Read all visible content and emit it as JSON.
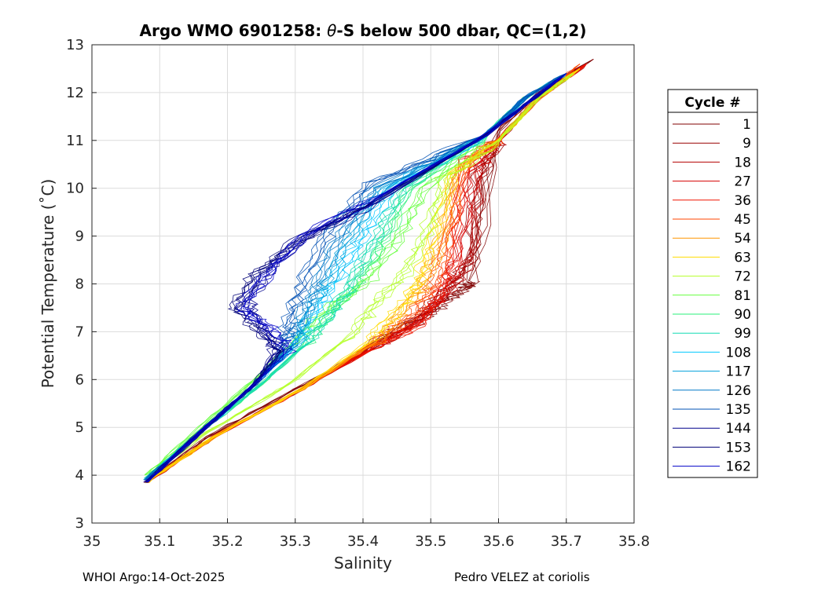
{
  "chart_data": {
    "type": "line",
    "title": "Argo WMO 6901258: θ-S below 500 dbar,  QC=(1,2)",
    "title_parts": {
      "pre": "Argo WMO 6901258: ",
      "theta": "θ",
      "post": "-S below 500 dbar,  QC=(1,2)"
    },
    "xlabel": "Salinity",
    "ylabel": "Potential Temperature (˚C)",
    "xlim": [
      35,
      35.8
    ],
    "ylim": [
      3,
      13
    ],
    "xticks": [
      "35",
      "35.1",
      "35.2",
      "35.3",
      "35.4",
      "35.5",
      "35.6",
      "35.7",
      "35.8"
    ],
    "yticks": [
      "3",
      "4",
      "5",
      "6",
      "7",
      "8",
      "9",
      "10",
      "11",
      "12",
      "13"
    ],
    "grid": true,
    "legend_title": "Cycle #",
    "legend_position": "right",
    "colormap": "jet",
    "series": [
      {
        "name": "1",
        "color": "#800000",
        "salinity": [
          35.08,
          35.17,
          35.3,
          35.42,
          35.48,
          35.52,
          35.55,
          35.56,
          35.6,
          35.66,
          35.74
        ],
        "theta": [
          3.85,
          4.8,
          5.8,
          6.7,
          7.2,
          7.6,
          7.9,
          8.05,
          11.2,
          12.0,
          12.7
        ]
      },
      {
        "name": "9",
        "color": "#990000",
        "salinity": [
          35.08,
          35.18,
          35.31,
          35.42,
          35.49,
          35.53,
          35.56,
          35.57,
          35.6,
          35.66,
          35.73
        ],
        "theta": [
          3.85,
          4.8,
          5.8,
          6.8,
          7.4,
          8.0,
          8.5,
          10.2,
          11.0,
          11.9,
          12.6
        ]
      },
      {
        "name": "18",
        "color": "#b30000",
        "salinity": [
          35.08,
          35.18,
          35.31,
          35.42,
          35.49,
          35.53,
          35.56,
          35.57,
          35.6,
          35.66,
          35.73
        ],
        "theta": [
          3.85,
          4.8,
          5.8,
          6.7,
          7.3,
          7.9,
          8.6,
          10.4,
          11.0,
          11.9,
          12.6
        ]
      },
      {
        "name": "27",
        "color": "#d60000",
        "salinity": [
          35.08,
          35.18,
          35.31,
          35.42,
          35.48,
          35.52,
          35.54,
          35.56,
          35.6,
          35.66,
          35.73
        ],
        "theta": [
          3.85,
          4.8,
          5.8,
          6.7,
          7.2,
          7.8,
          8.5,
          10.3,
          11.0,
          11.9,
          12.6
        ]
      },
      {
        "name": "36",
        "color": "#f01400",
        "salinity": [
          35.08,
          35.18,
          35.31,
          35.42,
          35.48,
          35.51,
          35.53,
          35.55,
          35.6,
          35.66,
          35.73
        ],
        "theta": [
          3.85,
          4.8,
          5.8,
          6.7,
          7.1,
          7.7,
          8.4,
          10.6,
          11.0,
          11.9,
          12.6
        ]
      },
      {
        "name": "45",
        "color": "#ff4600",
        "salinity": [
          35.08,
          35.18,
          35.31,
          35.42,
          35.47,
          35.5,
          35.52,
          35.55,
          35.6,
          35.66,
          35.72
        ],
        "theta": [
          3.85,
          4.8,
          5.8,
          6.8,
          7.3,
          7.9,
          8.6,
          10.5,
          11.0,
          11.9,
          12.6
        ]
      },
      {
        "name": "54",
        "color": "#ff9600",
        "salinity": [
          35.08,
          35.18,
          35.31,
          35.42,
          35.46,
          35.49,
          35.51,
          35.54,
          35.6,
          35.66,
          35.72
        ],
        "theta": [
          3.85,
          4.8,
          5.8,
          6.8,
          7.4,
          8.0,
          8.7,
          10.4,
          11.0,
          11.9,
          12.5
        ]
      },
      {
        "name": "63",
        "color": "#ffdc00",
        "salinity": [
          35.08,
          35.18,
          35.31,
          35.41,
          35.45,
          35.48,
          35.5,
          35.53,
          35.6,
          35.66,
          35.72
        ],
        "theta": [
          3.85,
          4.8,
          5.8,
          6.8,
          7.4,
          8.0,
          8.8,
          10.3,
          11.0,
          11.9,
          12.5
        ]
      },
      {
        "name": "72",
        "color": "#b4ff28",
        "salinity": [
          35.08,
          35.17,
          35.29,
          35.38,
          35.42,
          35.46,
          35.49,
          35.52,
          35.6,
          35.66,
          35.71
        ],
        "theta": [
          3.95,
          4.9,
          5.9,
          6.9,
          7.6,
          8.2,
          8.9,
          10.2,
          11.0,
          11.9,
          12.4
        ]
      },
      {
        "name": "81",
        "color": "#64ff3c",
        "salinity": [
          35.08,
          35.16,
          35.24,
          35.3,
          35.35,
          35.41,
          35.45,
          35.49,
          35.58,
          35.64,
          35.7
        ],
        "theta": [
          4.0,
          5.0,
          6.0,
          6.8,
          7.5,
          8.1,
          8.9,
          10.0,
          11.1,
          11.9,
          12.4
        ]
      },
      {
        "name": "90",
        "color": "#28f078",
        "salinity": [
          35.08,
          35.16,
          35.25,
          35.32,
          35.36,
          35.4,
          35.43,
          35.47,
          35.58,
          35.64,
          35.7
        ],
        "theta": [
          3.95,
          4.9,
          5.9,
          6.8,
          7.5,
          8.2,
          8.9,
          10.0,
          11.1,
          11.9,
          12.4
        ]
      },
      {
        "name": "99",
        "color": "#14dcb4",
        "salinity": [
          35.08,
          35.16,
          35.25,
          35.32,
          35.36,
          35.39,
          35.42,
          35.46,
          35.58,
          35.64,
          35.7
        ],
        "theta": [
          3.95,
          4.9,
          5.9,
          6.8,
          7.5,
          8.2,
          9.0,
          10.0,
          11.1,
          11.9,
          12.4
        ]
      },
      {
        "name": "108",
        "color": "#00c8ff",
        "salinity": [
          35.08,
          35.16,
          35.24,
          35.3,
          35.33,
          35.36,
          35.4,
          35.44,
          35.58,
          35.64,
          35.7
        ],
        "theta": [
          3.9,
          4.9,
          5.9,
          6.7,
          7.4,
          8.1,
          9.0,
          10.0,
          11.1,
          11.9,
          12.4
        ]
      },
      {
        "name": "117",
        "color": "#00a0dc",
        "salinity": [
          35.08,
          35.16,
          35.24,
          35.3,
          35.32,
          35.35,
          35.38,
          35.43,
          35.58,
          35.64,
          35.7
        ],
        "theta": [
          3.9,
          4.9,
          5.9,
          6.7,
          7.4,
          8.1,
          9.0,
          10.0,
          11.1,
          11.9,
          12.4
        ]
      },
      {
        "name": "126",
        "color": "#0078c8",
        "salinity": [
          35.08,
          35.16,
          35.24,
          35.29,
          35.31,
          35.33,
          35.37,
          35.42,
          35.58,
          35.64,
          35.7
        ],
        "theta": [
          3.9,
          4.9,
          5.9,
          6.7,
          7.3,
          8.0,
          9.1,
          10.0,
          11.1,
          11.9,
          12.4
        ]
      },
      {
        "name": "135",
        "color": "#0050b4",
        "salinity": [
          35.08,
          35.16,
          35.24,
          35.28,
          35.29,
          35.31,
          35.35,
          35.41,
          35.58,
          35.64,
          35.7
        ],
        "theta": [
          3.9,
          4.9,
          5.9,
          6.6,
          7.2,
          8.0,
          9.1,
          10.1,
          11.1,
          11.9,
          12.4
        ]
      },
      {
        "name": "144",
        "color": "#00008c",
        "salinity": [
          35.08,
          35.16,
          35.24,
          35.27,
          35.25,
          35.23,
          35.26,
          35.32,
          35.42,
          35.58,
          35.7
        ],
        "theta": [
          3.85,
          4.9,
          5.9,
          6.6,
          7.1,
          7.6,
          8.3,
          9.0,
          9.7,
          11.1,
          12.4
        ]
      },
      {
        "name": "153",
        "color": "#000078",
        "salinity": [
          35.08,
          35.16,
          35.24,
          35.28,
          35.24,
          35.21,
          35.24,
          35.3,
          35.4,
          35.58,
          35.7
        ],
        "theta": [
          3.85,
          4.9,
          5.9,
          6.6,
          7.1,
          7.5,
          8.2,
          8.9,
          9.6,
          11.1,
          12.4
        ]
      },
      {
        "name": "162",
        "color": "#0000c8",
        "salinity": [
          35.08,
          35.16,
          35.24,
          35.29,
          35.26,
          35.22,
          35.26,
          35.31,
          35.42,
          35.58,
          35.7
        ],
        "theta": [
          3.85,
          4.9,
          5.9,
          6.6,
          7.1,
          7.5,
          8.2,
          9.0,
          9.8,
          11.1,
          12.4
        ]
      }
    ]
  },
  "footer": {
    "left": "WHOI Argo:14-Oct-2025",
    "right": "Pedro VELEZ at coriolis"
  }
}
